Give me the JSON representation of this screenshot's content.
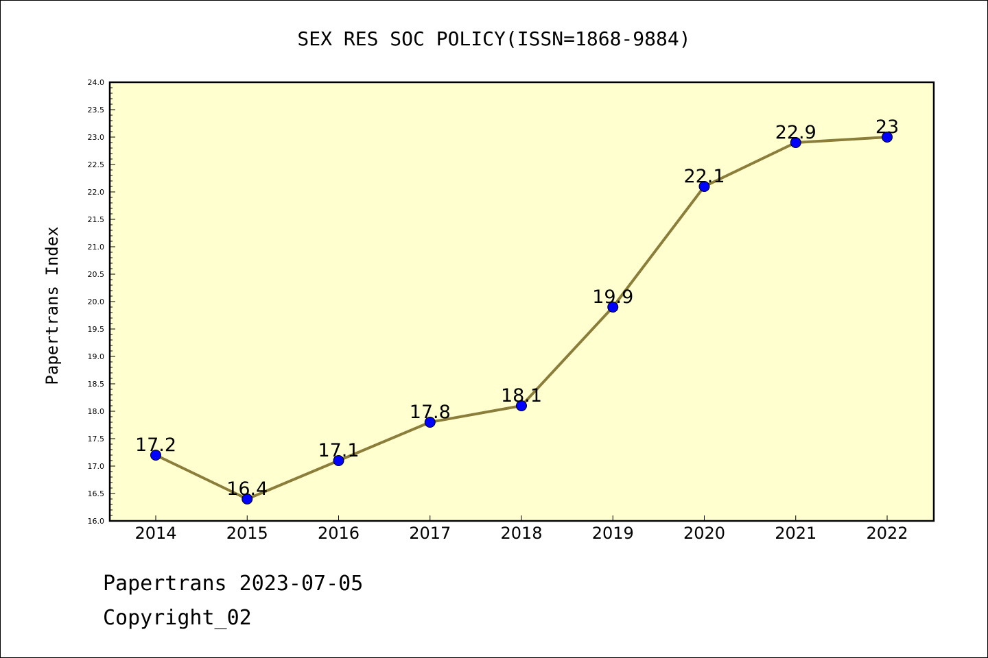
{
  "chart_data": {
    "type": "line",
    "title": "SEX RES SOC POLICY(ISSN=1868-9884)",
    "xlabel": "",
    "ylabel": "Papertrans Index",
    "categories": [
      "2014",
      "2015",
      "2016",
      "2017",
      "2018",
      "2019",
      "2020",
      "2021",
      "2022"
    ],
    "series": [
      {
        "values": [
          17.2,
          16.4,
          17.1,
          17.8,
          18.1,
          19.9,
          22.1,
          22.9,
          23.0
        ],
        "labels": [
          "17.2",
          "16.4",
          "17.1",
          "17.8",
          "18.1",
          "19.9",
          "22.1",
          "22.9",
          "23"
        ]
      }
    ],
    "ylim": [
      16.0,
      24.0
    ],
    "yticks": [
      "16.0",
      "16.5",
      "17.0",
      "17.5",
      "18.0",
      "18.5",
      "19.0",
      "19.5",
      "20.0",
      "20.5",
      "21.0",
      "21.5",
      "22.0",
      "22.5",
      "23.0",
      "23.5",
      "24.0"
    ],
    "grid": false,
    "legend": "none"
  },
  "footer": {
    "date_line": "Papertrans 2023-07-05",
    "copyright": "Copyright_02"
  },
  "colors": {
    "plot_background": "#ffffd0",
    "line": "#8b7d3a",
    "marker": "#0000ff"
  }
}
